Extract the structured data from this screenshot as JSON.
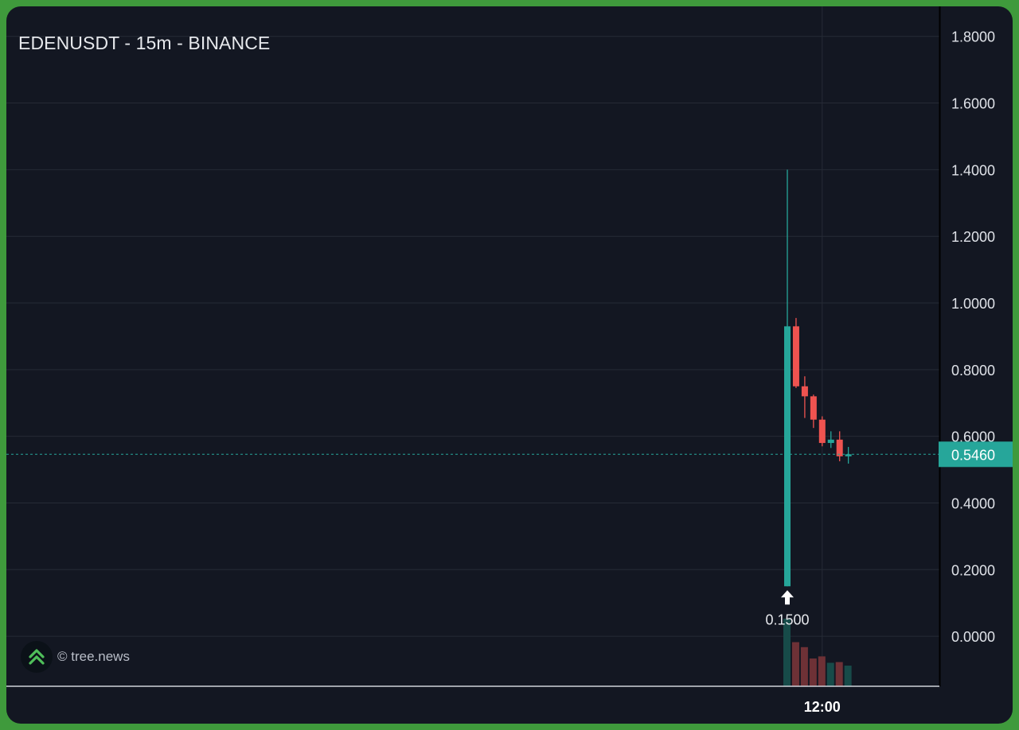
{
  "chart_data": {
    "type": "candlestick",
    "title": "EDENUSDT - 15m - BINANCE",
    "ylim": [
      -0.15,
      1.89
    ],
    "y_ticks": [
      0.0,
      0.2,
      0.4,
      0.6,
      0.8,
      1.0,
      1.2,
      1.4,
      1.6,
      1.8
    ],
    "y_tick_labels": [
      "0.0000",
      "0.2000",
      "0.4000",
      "0.6000",
      "0.8000",
      "1.0000",
      "1.2000",
      "1.4000",
      "1.6000",
      "1.8000"
    ],
    "x_tick_label": "12:00",
    "x_tick_index": 4,
    "grid": true,
    "candles": [
      {
        "open": 0.15,
        "high": 1.4,
        "low": 0.15,
        "close": 0.93
      },
      {
        "open": 0.93,
        "high": 0.955,
        "low": 0.745,
        "close": 0.75
      },
      {
        "open": 0.75,
        "high": 0.78,
        "low": 0.655,
        "close": 0.72
      },
      {
        "open": 0.72,
        "high": 0.725,
        "low": 0.625,
        "close": 0.65
      },
      {
        "open": 0.65,
        "high": 0.66,
        "low": 0.57,
        "close": 0.58
      },
      {
        "open": 0.58,
        "high": 0.615,
        "low": 0.565,
        "close": 0.59
      },
      {
        "open": 0.59,
        "high": 0.615,
        "low": 0.525,
        "close": 0.54
      },
      {
        "open": 0.54,
        "high": 0.568,
        "low": 0.518,
        "close": 0.546
      }
    ],
    "volume": [
      0.95,
      0.62,
      0.55,
      0.39,
      0.42,
      0.33,
      0.34,
      0.29
    ],
    "last_price": 0.546,
    "last_price_label": "0.5460",
    "marker": {
      "candle_index": 0,
      "label": "0.1500"
    }
  },
  "watermark": {
    "text": "© tree.news",
    "icon": "double-chevron-up-icon"
  },
  "colors": {
    "background": "#131722",
    "frame": "#3f9a3c",
    "up": "#26a69a",
    "down": "#ef5350",
    "volume_up": "#174b49",
    "volume_down": "#6e3136",
    "grid": "#262b36",
    "axis_text": "#dfe2e8"
  }
}
